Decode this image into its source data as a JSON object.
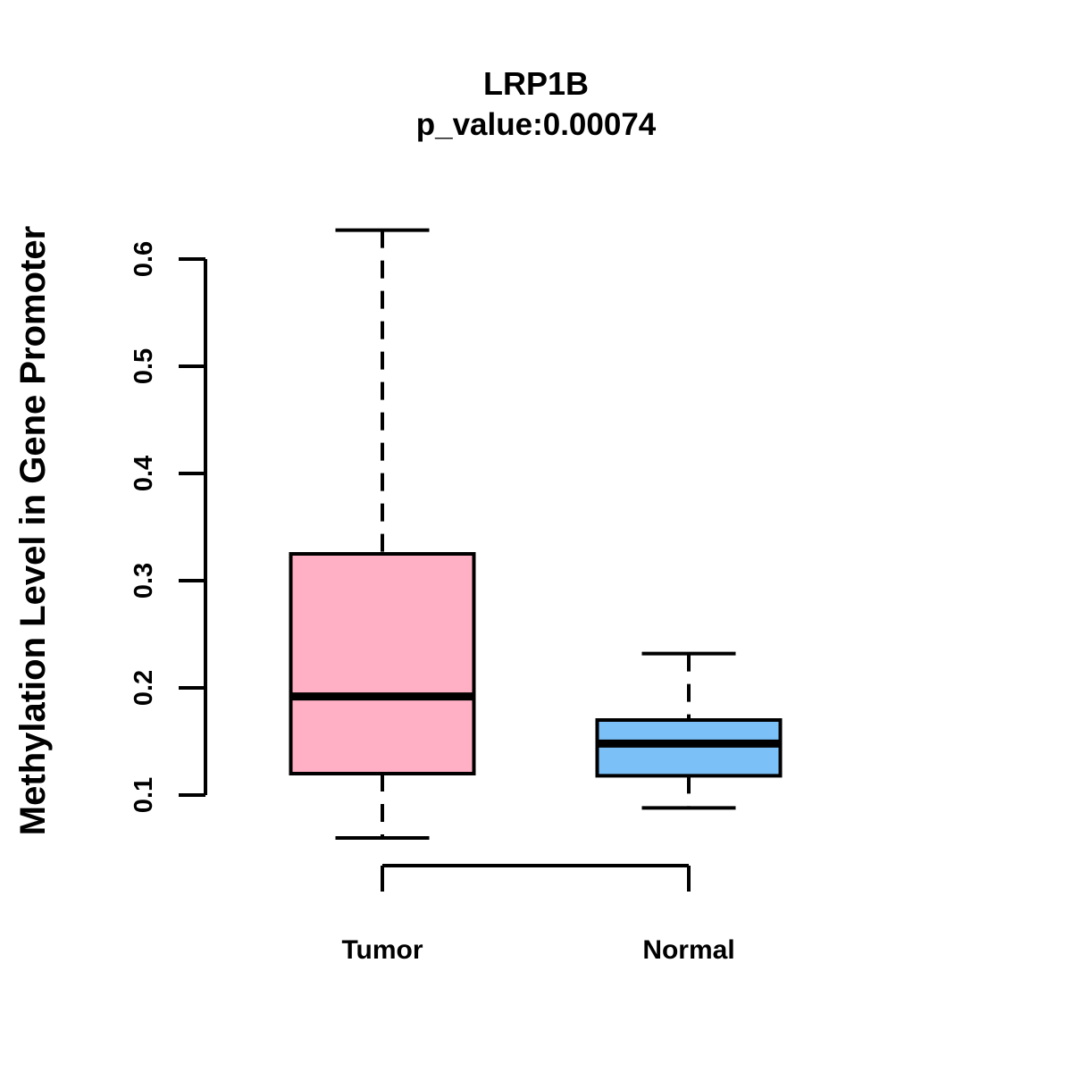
{
  "chart_data": {
    "type": "boxplot",
    "title": "LRP1B",
    "subtitle": "p_value:0.00074",
    "ylabel": "Methylation Level in Gene Promoter",
    "xlabel": "",
    "categories": [
      "Tumor",
      "Normal"
    ],
    "yticks": [
      0.1,
      0.2,
      0.3,
      0.4,
      0.5,
      0.6
    ],
    "ylim": [
      0.05,
      0.65
    ],
    "grid": false,
    "legend": "none",
    "orientation": "vertical",
    "line_color": "#000000",
    "background": "#FFFFFF",
    "series": [
      {
        "name": "Tumor",
        "color": "#FFB0C4",
        "whisker_low": 0.06,
        "q1": 0.12,
        "median": 0.192,
        "q3": 0.325,
        "whisker_high": 0.627
      },
      {
        "name": "Normal",
        "color": "#7BC0F7",
        "whisker_low": 0.088,
        "q1": 0.118,
        "median": 0.148,
        "q3": 0.17,
        "whisker_high": 0.232
      }
    ]
  }
}
